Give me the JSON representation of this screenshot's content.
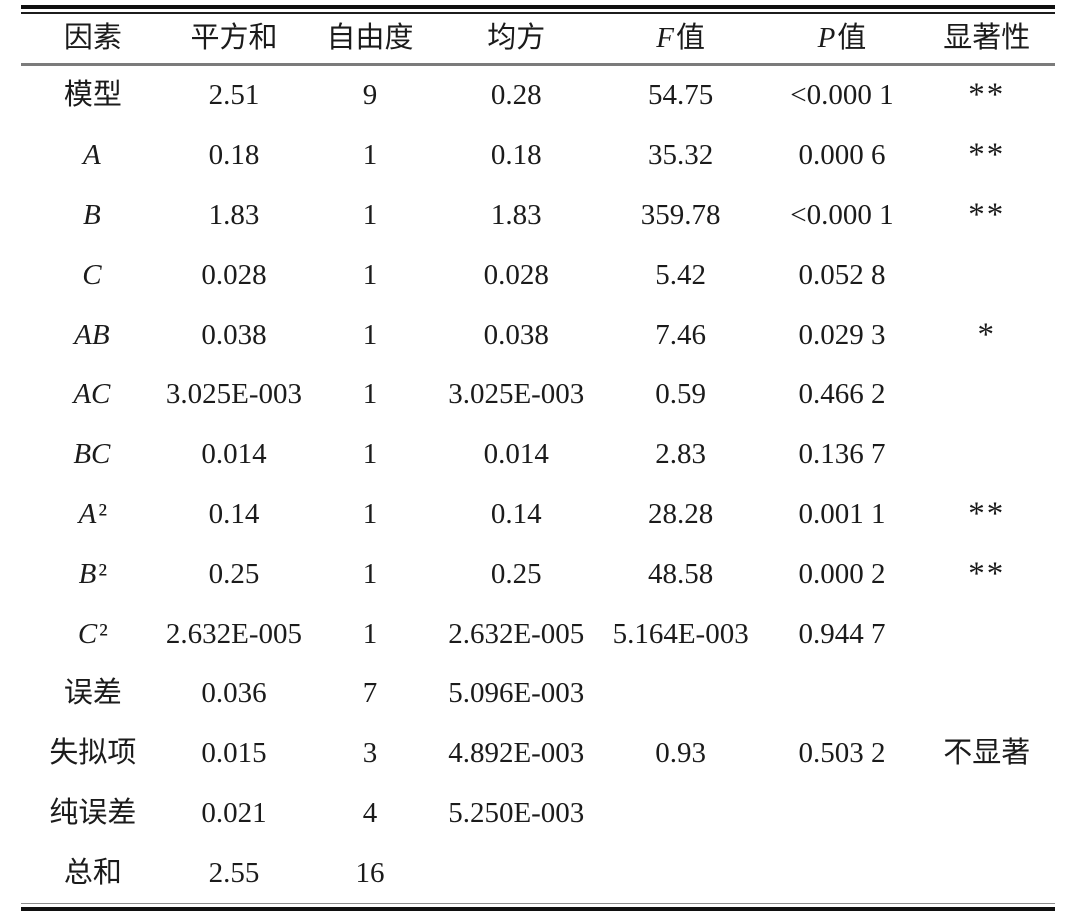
{
  "page": {
    "background": "#ffffff",
    "text_color": "#1b1b1b",
    "top_rule_color": "#101010",
    "header_rule_color": "#7b7b7b",
    "bottom_rule_color": "#101010"
  },
  "chart_data": {
    "type": "table",
    "headers": [
      "因素",
      "平方和",
      "自由度",
      "均方",
      "F值",
      "P值",
      "显著性"
    ],
    "rows": [
      [
        "模型",
        "2.51",
        "9",
        "0.28",
        "54.75",
        "<0.000 1",
        "**"
      ],
      [
        "A",
        "0.18",
        "1",
        "0.18",
        "35.32",
        "0.000 6",
        "**"
      ],
      [
        "B",
        "1.83",
        "1",
        "1.83",
        "359.78",
        "<0.000 1",
        "**"
      ],
      [
        "C",
        "0.028",
        "1",
        "0.028",
        "5.42",
        "0.052 8",
        ""
      ],
      [
        "AB",
        "0.038",
        "1",
        "0.038",
        "7.46",
        "0.029 3",
        "*"
      ],
      [
        "AC",
        "3.025E-003",
        "1",
        "3.025E-003",
        "0.59",
        "0.466 2",
        ""
      ],
      [
        "BC",
        "0.014",
        "1",
        "0.014",
        "2.83",
        "0.136 7",
        ""
      ],
      [
        "A²",
        "0.14",
        "1",
        "0.14",
        "28.28",
        "0.001 1",
        "**"
      ],
      [
        "B²",
        "0.25",
        "1",
        "0.25",
        "48.58",
        "0.000 2",
        "**"
      ],
      [
        "C²",
        "2.632E-005",
        "1",
        "2.632E-005",
        "5.164E-003",
        "0.944 7",
        ""
      ],
      [
        "误差",
        "0.036",
        "7",
        "5.096E-003",
        "",
        "",
        ""
      ],
      [
        "失拟项",
        "0.015",
        "3",
        "4.892E-003",
        "0.93",
        "0.503 2",
        "不显著"
      ],
      [
        "纯误差",
        "0.021",
        "4",
        "5.250E-003",
        "",
        "",
        ""
      ],
      [
        "总和",
        "2.55",
        "16",
        "",
        "",
        "",
        ""
      ]
    ]
  }
}
